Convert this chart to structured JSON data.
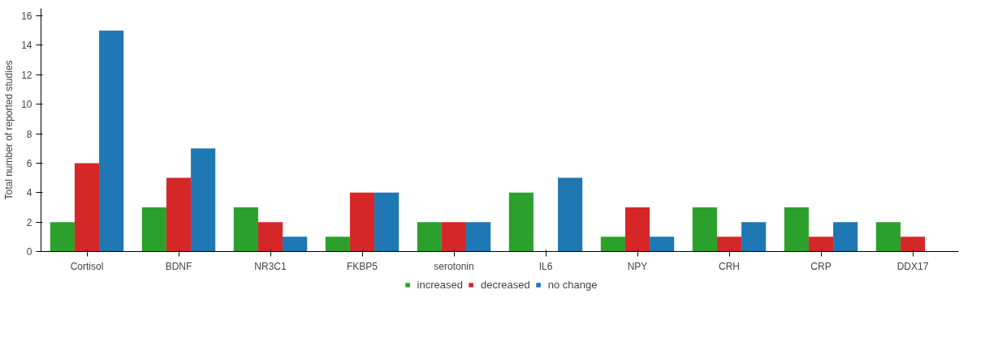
{
  "chart_data": {
    "type": "bar",
    "ylabel": "Total number of reported studies",
    "categories": [
      "Cortisol",
      "BDNF",
      "NR3C1",
      "FKBP5",
      "serotonin",
      "IL6",
      "NPY",
      "CRH",
      "CRP",
      "DDX17"
    ],
    "series": [
      {
        "name": "increased",
        "color": "#2ca02c",
        "values": [
          2,
          3,
          3,
          1,
          2,
          4,
          1,
          3,
          3,
          2
        ]
      },
      {
        "name": "decreased",
        "color": "#d62728",
        "values": [
          6,
          5,
          2,
          4,
          2,
          0,
          3,
          1,
          1,
          1
        ]
      },
      {
        "name": "no change",
        "color": "#1f77b4",
        "values": [
          15,
          7,
          1,
          4,
          2,
          5,
          1,
          2,
          2,
          0
        ]
      }
    ],
    "ylim": [
      0,
      16.5
    ],
    "yticks": [
      0,
      2,
      4,
      6,
      8,
      10,
      12,
      14,
      16
    ],
    "grid": false,
    "legend": "bottom"
  }
}
